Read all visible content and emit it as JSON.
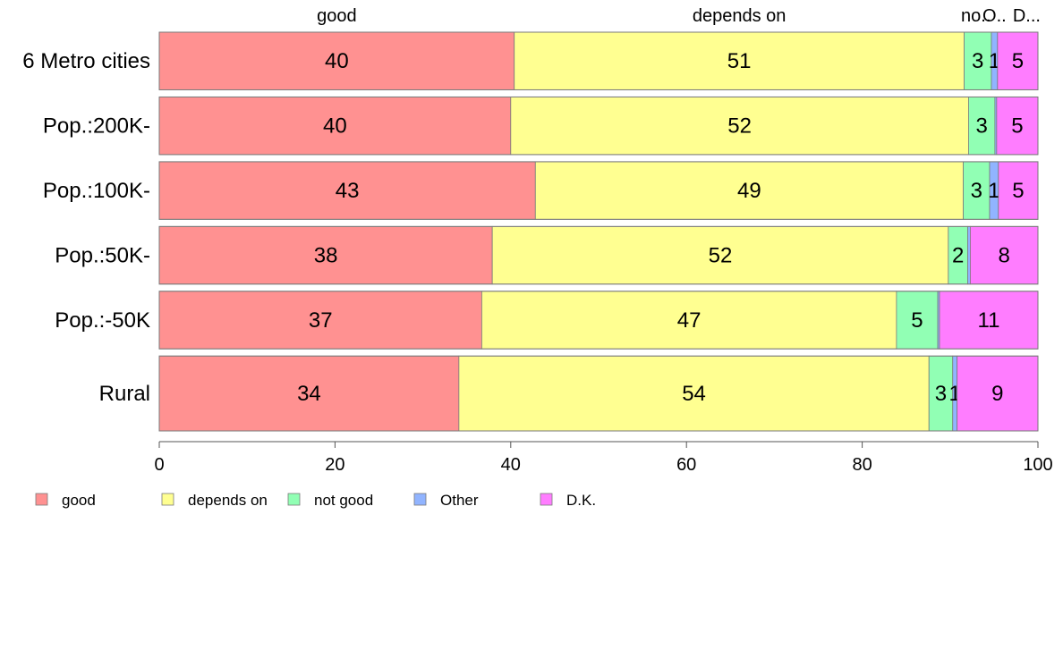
{
  "chart_data": {
    "type": "bar",
    "orientation": "horizontal",
    "stacked": true,
    "title": "",
    "xlabel": "",
    "ylabel": "",
    "xlim": [
      0,
      100
    ],
    "xticks": [
      "0",
      "20",
      "40",
      "60",
      "80",
      "100"
    ],
    "categories": [
      "6 Metro cities",
      "Pop.:200K-",
      "Pop.:100K-",
      "Pop.:50K-",
      "Pop.:-50K",
      "Rural"
    ],
    "bar_weights": [
      1,
      1,
      1,
      1,
      1,
      1.3
    ],
    "column_headers": [
      "good",
      "depends on",
      "no..",
      "O..",
      "D..."
    ],
    "series": [
      {
        "name": "good",
        "color": "#ff9191",
        "values": [
          40.4,
          40.0,
          42.8,
          37.9,
          36.7,
          34.1
        ],
        "labels": [
          "40",
          "40",
          "43",
          "38",
          "37",
          "34"
        ]
      },
      {
        "name": "depends on",
        "color": "#ffff91",
        "values": [
          51.2,
          52.1,
          48.7,
          51.9,
          47.2,
          53.5
        ],
        "labels": [
          "51",
          "52",
          "49",
          "52",
          "47",
          "54"
        ]
      },
      {
        "name": "not good",
        "color": "#91ffb4",
        "values": [
          3.1,
          3.0,
          3.0,
          2.2,
          4.7,
          2.7
        ],
        "labels": [
          "3",
          "3",
          "3",
          "2",
          "5",
          "3"
        ]
      },
      {
        "name": "Other",
        "color": "#91b4ff",
        "values": [
          0.7,
          0.2,
          1.0,
          0.3,
          0.2,
          0.5
        ],
        "labels": [
          "1",
          "",
          "1",
          "",
          "",
          "1"
        ]
      },
      {
        "name": "D.K.",
        "color": "#ff7dff",
        "values": [
          4.6,
          4.7,
          4.5,
          7.7,
          11.2,
          9.2
        ],
        "labels": [
          "5",
          "5",
          "5",
          "8",
          "11",
          "9"
        ]
      }
    ],
    "legend": [
      "good",
      "depends on",
      "not good",
      "Other",
      "D.K."
    ],
    "legend_position": "bottom-left",
    "grid": false
  }
}
